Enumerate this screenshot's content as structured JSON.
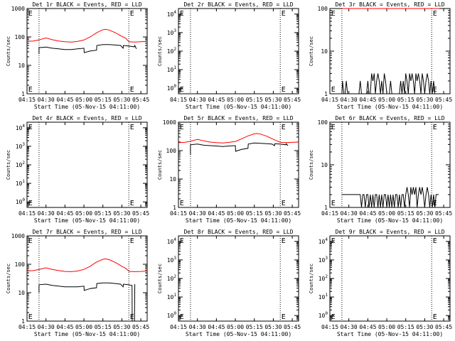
{
  "figure": {
    "background": "#ffffff",
    "axis_color": "#000000",
    "events_color": "#000000",
    "lld_color": "#ff0000",
    "x_tick_labels": [
      "04:15",
      "04:30",
      "04:45",
      "05:00",
      "05:15",
      "05:30",
      "05:45"
    ],
    "x_tick_minutes": [
      0,
      15,
      30,
      45,
      60,
      75,
      90
    ],
    "x_range_minutes": [
      0,
      95
    ],
    "dotted_lines_minutes": [
      9.5,
      80.5
    ],
    "xlabel": "Start Time (05-Nov-15 04:11:00)",
    "ylabel": "Counts/sec"
  },
  "chart_data": [
    {
      "type": "line",
      "title": "Det 1r BLACK = Events, RED = LLD",
      "ylabel": "Counts/sec",
      "xlabel": "Start Time (05-Nov-15 04:11:00)",
      "yscale": "log",
      "ylim": [
        1,
        1000
      ],
      "yticks": [
        {
          "v": 1,
          "t": "1"
        },
        {
          "v": 10,
          "t": "10"
        },
        {
          "v": 100,
          "t": "100"
        },
        {
          "v": 1000,
          "t": "1000"
        }
      ],
      "markers": [
        {
          "x": 0.4,
          "text": "E"
        },
        {
          "x": 80.8,
          "text": "E"
        }
      ],
      "series": [
        {
          "name": "LLD",
          "color": "#ff0000",
          "x": [
            0,
            5,
            9,
            15,
            20,
            25,
            30,
            35,
            40,
            45,
            50,
            55,
            60,
            62,
            65,
            70,
            75,
            78,
            80,
            81,
            85,
            90,
            95
          ],
          "y": [
            70,
            72,
            78,
            92,
            80,
            72,
            68,
            66,
            70,
            78,
            100,
            140,
            180,
            185,
            175,
            140,
            105,
            90,
            72,
            68,
            66,
            68,
            70
          ]
        },
        {
          "name": "Events",
          "color": "#000000",
          "x": [
            9.5,
            9.5,
            15,
            20,
            25,
            30,
            35,
            40,
            45,
            45.2,
            50,
            55,
            55.2,
            60,
            65,
            70,
            74,
            76,
            76.2,
            80,
            85,
            85.2,
            86.5
          ],
          "y": [
            25,
            42,
            44,
            40,
            38,
            36,
            36,
            38,
            40,
            28,
            32,
            34,
            50,
            54,
            54,
            52,
            50,
            40,
            50,
            48,
            45,
            50,
            38
          ]
        }
      ]
    },
    {
      "type": "line",
      "title": "Det 2r BLACK = Events, RED = LLD",
      "ylabel": "Counts/sec",
      "xlabel": "Start Time (05-Nov-15 04:11:00)",
      "yscale": "log",
      "ylim": [
        0.5,
        20000
      ],
      "yticks": [
        {
          "v": 1,
          "t": "10^0"
        },
        {
          "v": 10,
          "t": "10^1"
        },
        {
          "v": 100,
          "t": "10^2"
        },
        {
          "v": 1000,
          "t": "10^3"
        },
        {
          "v": 10000,
          "t": "10^4"
        }
      ],
      "markers": [
        {
          "x": 0.4,
          "text": "E"
        },
        {
          "x": 80.8,
          "text": "E"
        }
      ],
      "series": []
    },
    {
      "type": "line",
      "title": "Det 3r BLACK = Events, RED = LLD",
      "ylabel": "Counts/sec",
      "xlabel": "Start Time (05-Nov-15 04:11:00)",
      "yscale": "log",
      "ylim": [
        1,
        100
      ],
      "yticks": [
        {
          "v": 1,
          "t": "1"
        },
        {
          "v": 10,
          "t": "10"
        },
        {
          "v": 100,
          "t": "100"
        }
      ],
      "markers": [
        {
          "x": 0.4,
          "text": "E"
        },
        {
          "x": 80.8,
          "text": "E"
        }
      ],
      "series": [
        {
          "name": "LLD",
          "color": "#ff0000",
          "x": [
            9.5,
            20,
            30,
            40,
            50,
            55,
            60,
            65,
            70,
            75,
            80,
            85,
            86.5
          ],
          "y": [
            100,
            101,
            100,
            102,
            100,
            101,
            103,
            100,
            102,
            100,
            101,
            102,
            100
          ]
        },
        {
          "name": "Events",
          "color": "#000000",
          "x": [
            9.5,
            10,
            11,
            12,
            13,
            14,
            15,
            16,
            17,
            18,
            19,
            20,
            21,
            22,
            23,
            24,
            25,
            26,
            27,
            28,
            29,
            30,
            31,
            32,
            33,
            34,
            35,
            36,
            37,
            38,
            39,
            40,
            41,
            42,
            43,
            44,
            45,
            46,
            47,
            48,
            49,
            50,
            51,
            52,
            53,
            54,
            55,
            56,
            57,
            58,
            59,
            60,
            61,
            62,
            63,
            64,
            65,
            66,
            67,
            68,
            69,
            70,
            71,
            72,
            73,
            74,
            75,
            76,
            77,
            78,
            79,
            80,
            81,
            82,
            83,
            84,
            85,
            86
          ],
          "y": [
            1,
            2,
            1,
            1,
            2,
            1,
            1,
            1,
            1,
            1,
            1,
            1,
            1,
            1,
            1,
            2,
            1,
            1,
            1,
            1,
            1,
            2,
            1,
            1,
            3,
            2,
            3,
            1,
            2,
            3,
            2,
            1,
            2,
            1,
            3,
            2,
            1,
            1,
            1,
            2,
            1,
            1,
            1,
            1,
            1,
            1,
            1,
            2,
            1,
            2,
            1,
            3,
            2,
            1,
            3,
            2,
            3,
            2,
            1,
            3,
            2,
            3,
            2,
            1,
            3,
            2,
            1,
            2,
            3,
            2,
            1,
            2,
            1,
            2,
            1,
            1,
            1,
            1
          ]
        }
      ]
    },
    {
      "type": "line",
      "title": "Det 4r BLACK = Events, RED = LLD",
      "ylabel": "Counts/sec",
      "xlabel": "Start Time (05-Nov-15 04:11:00)",
      "yscale": "log",
      "ylim": [
        0.5,
        20000
      ],
      "yticks": [
        {
          "v": 1,
          "t": "10^0"
        },
        {
          "v": 10,
          "t": "10^1"
        },
        {
          "v": 100,
          "t": "10^2"
        },
        {
          "v": 1000,
          "t": "10^3"
        },
        {
          "v": 10000,
          "t": "10^4"
        }
      ],
      "markers": [
        {
          "x": 0.4,
          "text": "E"
        },
        {
          "x": 80.8,
          "text": "E"
        }
      ],
      "series": []
    },
    {
      "type": "line",
      "title": "Det 5r BLACK = Events, RED = LLD",
      "ylabel": "Counts/sec",
      "xlabel": "Start Time (05-Nov-15 04:11:00)",
      "yscale": "log",
      "ylim": [
        1,
        1000
      ],
      "yticks": [
        {
          "v": 1,
          "t": "1"
        },
        {
          "v": 10,
          "t": "10"
        },
        {
          "v": 100,
          "t": "100"
        },
        {
          "v": 1000,
          "t": "1000"
        }
      ],
      "markers": [
        {
          "x": 0.4,
          "text": "E"
        },
        {
          "x": 80.8,
          "text": "E"
        }
      ],
      "series": [
        {
          "name": "LLD",
          "color": "#ff0000",
          "x": [
            0,
            5,
            9,
            15,
            20,
            25,
            30,
            35,
            40,
            45,
            50,
            55,
            60,
            62,
            65,
            70,
            75,
            78,
            80,
            81,
            85,
            90,
            95
          ],
          "y": [
            190,
            195,
            210,
            250,
            220,
            200,
            190,
            185,
            195,
            210,
            260,
            330,
            390,
            400,
            380,
            320,
            250,
            220,
            200,
            195,
            190,
            195,
            200
          ]
        },
        {
          "name": "Events",
          "color": "#000000",
          "x": [
            9.5,
            9.5,
            15,
            20,
            25,
            30,
            35,
            40,
            45,
            45.2,
            50,
            55,
            55.2,
            60,
            65,
            70,
            74,
            76,
            76.2,
            80,
            85,
            85.2,
            86.5
          ],
          "y": [
            70,
            160,
            170,
            155,
            150,
            145,
            140,
            145,
            150,
            95,
            110,
            120,
            170,
            185,
            180,
            175,
            170,
            150,
            175,
            170,
            160,
            175,
            150
          ]
        }
      ]
    },
    {
      "type": "line",
      "title": "Det 6r BLACK = Events, RED = LLD",
      "ylabel": "Counts/sec",
      "xlabel": "Start Time (05-Nov-15 04:11:00)",
      "yscale": "log",
      "ylim": [
        1,
        100
      ],
      "yticks": [
        {
          "v": 1,
          "t": "1"
        },
        {
          "v": 10,
          "t": "10"
        },
        {
          "v": 100,
          "t": "100"
        }
      ],
      "markers": [
        {
          "x": 0.4,
          "text": "E"
        },
        {
          "x": 80.8,
          "text": "E"
        }
      ],
      "series": [
        {
          "name": "Events",
          "color": "#000000",
          "x": [
            9.5,
            10,
            11,
            12,
            13,
            14,
            15,
            16,
            17,
            18,
            19,
            20,
            21,
            22,
            23,
            24,
            25,
            26,
            27,
            28,
            29,
            30,
            31,
            32,
            33,
            34,
            35,
            36,
            37,
            38,
            39,
            40,
            41,
            42,
            43,
            44,
            45,
            46,
            47,
            48,
            49,
            50,
            51,
            52,
            53,
            54,
            55,
            56,
            57,
            58,
            59,
            60,
            61,
            62,
            63,
            64,
            65,
            66,
            67,
            68,
            69,
            70,
            71,
            72,
            73,
            74,
            75,
            76,
            77,
            78,
            79,
            80,
            81,
            82,
            83,
            84,
            85,
            86
          ],
          "y": [
            2,
            2,
            2,
            2,
            2,
            2,
            2,
            2,
            2,
            2,
            2,
            2,
            2,
            2,
            2,
            2,
            1,
            2,
            2,
            1,
            2,
            2,
            1,
            2,
            1,
            2,
            1,
            2,
            2,
            1,
            2,
            1,
            2,
            1,
            2,
            2,
            1,
            2,
            1,
            2,
            1,
            2,
            1,
            2,
            2,
            1,
            2,
            1,
            2,
            2,
            1,
            2,
            3,
            2,
            1,
            3,
            2,
            3,
            2,
            3,
            1,
            2,
            3,
            2,
            3,
            2,
            1,
            2,
            3,
            2,
            1,
            2,
            1,
            2,
            1,
            2,
            2,
            2
          ]
        }
      ]
    },
    {
      "type": "line",
      "title": "Det 7r BLACK = Events, RED = LLD",
      "ylabel": "Counts/sec",
      "xlabel": "Start Time (05-Nov-15 04:11:00)",
      "yscale": "log",
      "ylim": [
        1,
        1000
      ],
      "yticks": [
        {
          "v": 1,
          "t": "1"
        },
        {
          "v": 10,
          "t": "10"
        },
        {
          "v": 100,
          "t": "100"
        },
        {
          "v": 1000,
          "t": "1000"
        }
      ],
      "markers": [
        {
          "x": 0.4,
          "text": "E"
        },
        {
          "x": 80.8,
          "text": "E"
        }
      ],
      "series": [
        {
          "name": "LLD",
          "color": "#ff0000",
          "x": [
            0,
            5,
            9,
            15,
            20,
            25,
            30,
            35,
            40,
            45,
            50,
            55,
            60,
            62,
            65,
            70,
            75,
            78,
            80,
            81,
            85,
            90,
            95
          ],
          "y": [
            58,
            60,
            65,
            75,
            66,
            60,
            56,
            55,
            58,
            66,
            85,
            120,
            150,
            155,
            145,
            115,
            85,
            72,
            60,
            56,
            55,
            56,
            58
          ]
        },
        {
          "name": "Events",
          "color": "#000000",
          "x": [
            9.5,
            9.5,
            15,
            20,
            25,
            30,
            35,
            40,
            45,
            45.2,
            50,
            55,
            55.2,
            60,
            65,
            70,
            74,
            76,
            76.2,
            80,
            83,
            83.2,
            85,
            85.2
          ],
          "y": [
            10,
            19,
            20,
            18,
            17,
            16,
            16,
            16,
            17,
            12,
            14,
            15,
            21,
            22,
            22,
            21,
            20,
            16,
            20,
            19,
            18,
            1,
            1,
            20
          ]
        }
      ]
    },
    {
      "type": "line",
      "title": "Det 8r BLACK = Events, RED = LLD",
      "ylabel": "Counts/sec",
      "xlabel": "Start Time (05-Nov-15 04:11:00)",
      "yscale": "log",
      "ylim": [
        0.5,
        20000
      ],
      "yticks": [
        {
          "v": 1,
          "t": "10^0"
        },
        {
          "v": 10,
          "t": "10^1"
        },
        {
          "v": 100,
          "t": "10^2"
        },
        {
          "v": 1000,
          "t": "10^3"
        },
        {
          "v": 10000,
          "t": "10^4"
        }
      ],
      "markers": [
        {
          "x": 0.4,
          "text": "E"
        },
        {
          "x": 80.8,
          "text": "E"
        }
      ],
      "series": []
    },
    {
      "type": "line",
      "title": "Det 9r BLACK = Events, RED = LLD",
      "ylabel": "Counts/sec",
      "xlabel": "Start Time (05-Nov-15 04:11:00)",
      "yscale": "log",
      "ylim": [
        0.5,
        20000
      ],
      "yticks": [
        {
          "v": 1,
          "t": "10^0"
        },
        {
          "v": 10,
          "t": "10^1"
        },
        {
          "v": 100,
          "t": "10^2"
        },
        {
          "v": 1000,
          "t": "10^3"
        },
        {
          "v": 10000,
          "t": "10^4"
        }
      ],
      "markers": [
        {
          "x": 0.4,
          "text": "E"
        },
        {
          "x": 80.8,
          "text": "E"
        }
      ],
      "series": []
    }
  ]
}
